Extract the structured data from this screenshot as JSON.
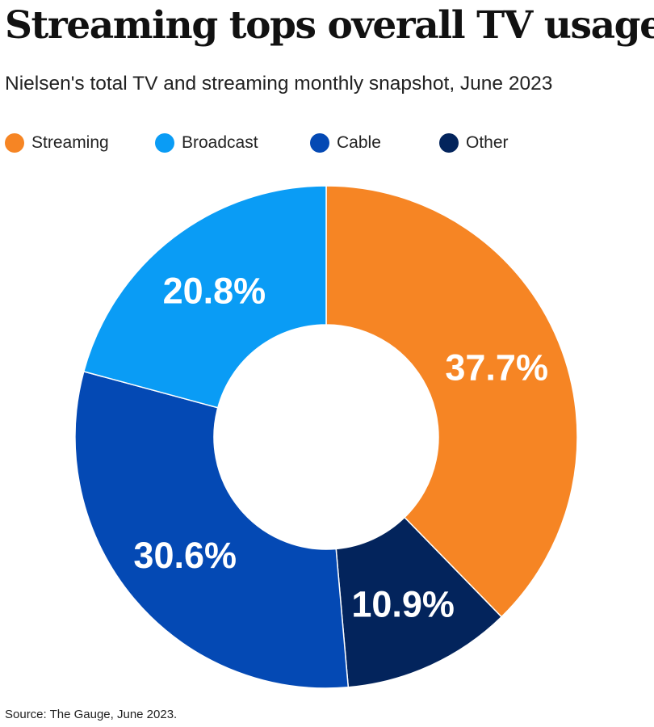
{
  "title": "Streaming tops overall TV usage",
  "subtitle": "Nielsen's total TV and streaming monthly snapshot, June 2023",
  "source": "Source: The Gauge, June 2023.",
  "chart_data": {
    "type": "pie",
    "donut": true,
    "title": "Streaming tops overall TV usage",
    "subtitle": "Nielsen's total TV and streaming monthly snapshot, June 2023",
    "legend_position": "top",
    "slices": [
      {
        "label": "Streaming",
        "value": 37.7,
        "display": "37.7%",
        "color": "#F68524"
      },
      {
        "label": "Other",
        "value": 10.9,
        "display": "10.9%",
        "color": "#03245C"
      },
      {
        "label": "Cable",
        "value": 30.6,
        "display": "30.6%",
        "color": "#0449B4"
      },
      {
        "label": "Broadcast",
        "value": 20.8,
        "display": "20.8%",
        "color": "#0A9CF5"
      }
    ],
    "legend": [
      {
        "label": "Streaming",
        "color": "#F68524"
      },
      {
        "label": "Broadcast",
        "color": "#0A9CF5"
      },
      {
        "label": "Cable",
        "color": "#0449B4"
      },
      {
        "label": "Other",
        "color": "#03245C"
      }
    ]
  }
}
